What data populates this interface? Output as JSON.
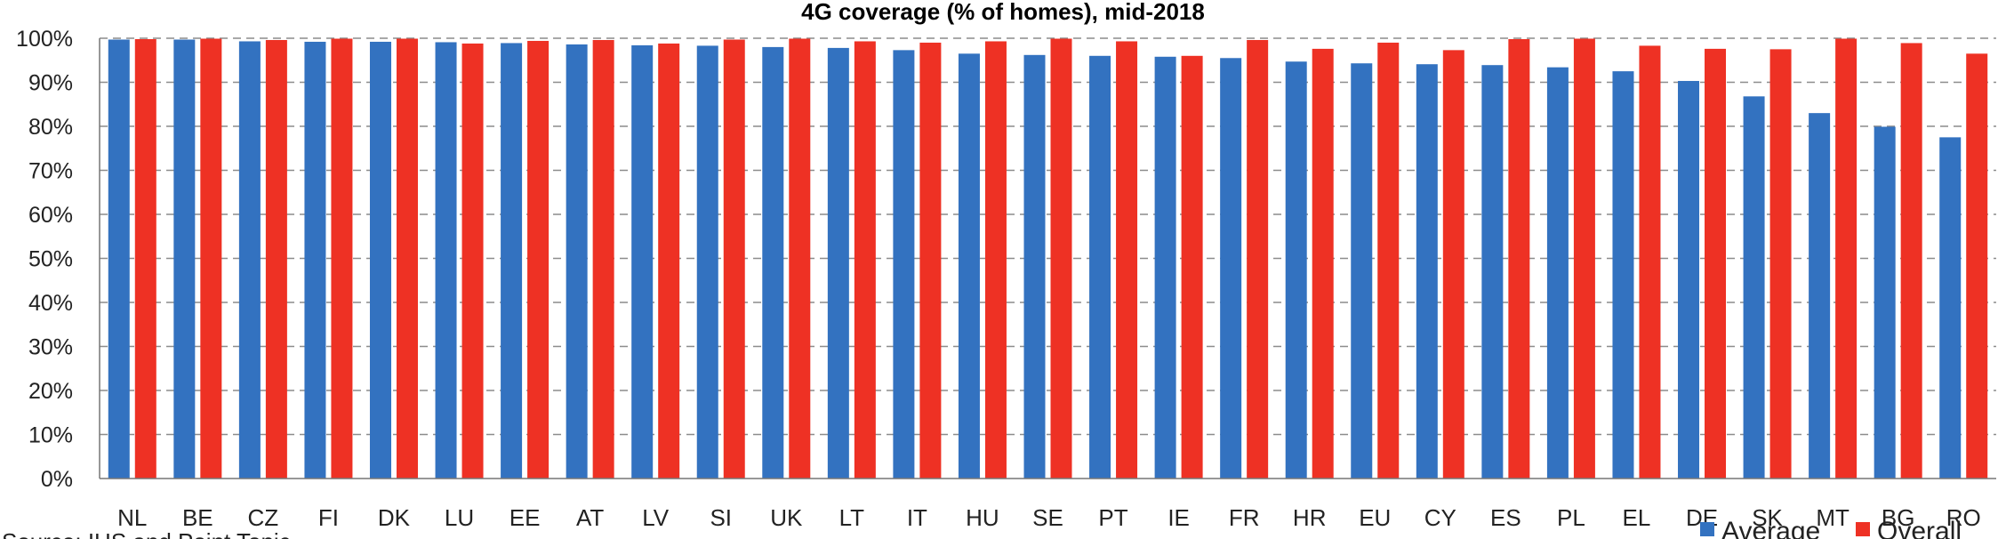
{
  "chart_data": {
    "type": "bar",
    "title": "4G coverage (% of homes), mid-2018",
    "xlabel": "",
    "ylabel": "",
    "ylim": [
      0,
      100
    ],
    "yticks": [
      "0%",
      "10%",
      "20%",
      "30%",
      "40%",
      "50%",
      "60%",
      "70%",
      "80%",
      "90%",
      "100%"
    ],
    "grid": "horizontal dashed",
    "legend": "bottom-right",
    "categories": [
      "NL",
      "BE",
      "CZ",
      "FI",
      "DK",
      "LU",
      "EE",
      "AT",
      "LV",
      "SI",
      "UK",
      "LT",
      "IT",
      "HU",
      "SE",
      "PT",
      "IE",
      "FR",
      "HR",
      "EU",
      "CY",
      "ES",
      "PL",
      "EL",
      "DE",
      "SK",
      "MT",
      "BG",
      "RO"
    ],
    "series": [
      {
        "name": "Average",
        "color": "#3372c0",
        "values": [
          99.7,
          99.7,
          99.3,
          99.2,
          99.2,
          99.1,
          98.9,
          98.6,
          98.4,
          98.3,
          98.0,
          97.8,
          97.3,
          96.5,
          96.2,
          96.0,
          95.8,
          95.5,
          94.7,
          94.3,
          94.1,
          93.9,
          93.4,
          92.5,
          90.3,
          86.8,
          83.0,
          79.9,
          77.5
        ]
      },
      {
        "name": "Overall",
        "color": "#ee3124",
        "values": [
          99.8,
          99.9,
          99.6,
          99.9,
          99.9,
          98.8,
          99.4,
          99.6,
          98.8,
          99.7,
          99.9,
          99.3,
          99.0,
          99.3,
          99.9,
          99.3,
          96.0,
          99.6,
          97.6,
          99.0,
          97.3,
          99.8,
          99.9,
          98.3,
          97.6,
          97.5,
          99.9,
          98.9,
          96.5
        ]
      }
    ]
  },
  "source": "Source: IHS and Point Topic"
}
